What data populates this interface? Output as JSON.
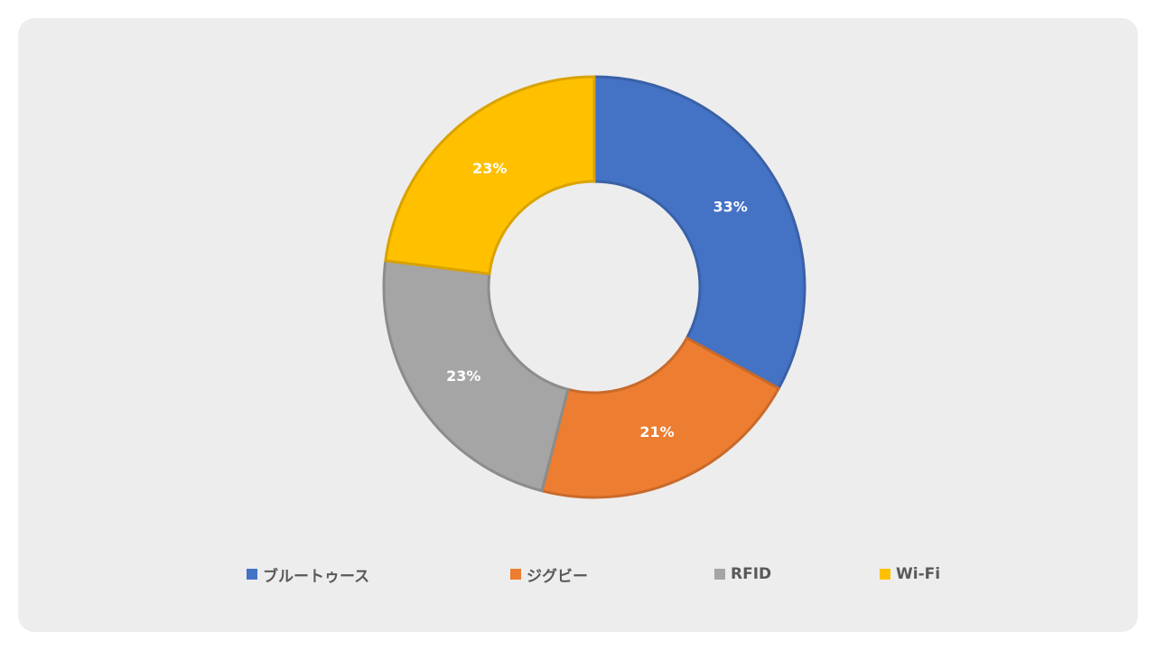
{
  "chart_data": {
    "type": "pie",
    "title": "",
    "style": "donut",
    "categories": [
      "ブルートゥース",
      "ジグビー",
      "RFID",
      "Wi-Fi"
    ],
    "values": [
      33,
      21,
      23,
      23
    ],
    "data_labels": [
      "33%",
      "21%",
      "23%",
      "23%"
    ],
    "colors": [
      "#4472c4",
      "#ed7d31",
      "#a5a5a5",
      "#ffc000"
    ],
    "legend_position": "bottom"
  }
}
